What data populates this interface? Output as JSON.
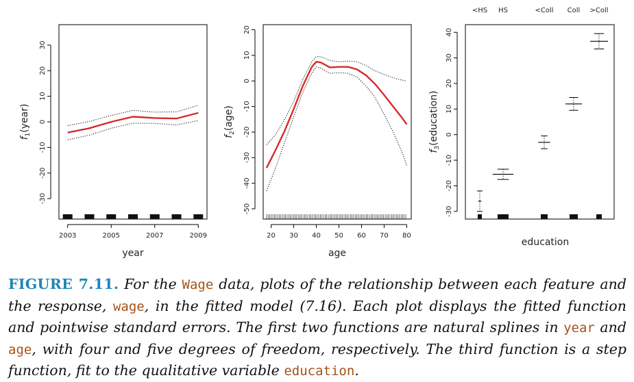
{
  "chart_data": [
    {
      "type": "line",
      "panel": "year",
      "xlabel": "year",
      "ylabel_parts": [
        "f",
        "1",
        "(year)"
      ],
      "xlim": [
        2002.6,
        2009.4
      ],
      "ylim": [
        -38,
        38
      ],
      "xticks": [
        2003,
        2005,
        2007,
        2009
      ],
      "yticks": [
        -30,
        -20,
        -10,
        0,
        10,
        20,
        30
      ],
      "fit": {
        "x": [
          2003,
          2004,
          2005,
          2006,
          2007,
          2008,
          2009
        ],
        "y": [
          -4.2,
          -2.5,
          0.0,
          2.0,
          1.5,
          1.3,
          3.5
        ]
      },
      "upper": {
        "x": [
          2003,
          2004,
          2005,
          2006,
          2007,
          2008,
          2009
        ],
        "y": [
          -1.5,
          0.2,
          2.5,
          4.5,
          3.8,
          3.9,
          6.5
        ]
      },
      "lower": {
        "x": [
          2003,
          2004,
          2005,
          2006,
          2007,
          2008,
          2009
        ],
        "y": [
          -7.0,
          -5.2,
          -2.5,
          -0.5,
          -0.6,
          -1.2,
          0.5
        ]
      },
      "rug": [
        2003,
        2004,
        2005,
        2006,
        2007,
        2008,
        2009
      ]
    },
    {
      "type": "line",
      "panel": "age",
      "xlabel": "age",
      "ylabel_parts": [
        "f",
        "2",
        "(age)"
      ],
      "xlim": [
        16.5,
        82
      ],
      "ylim": [
        -54,
        22
      ],
      "xticks": [
        20,
        30,
        40,
        50,
        60,
        70,
        80
      ],
      "yticks": [
        -50,
        -40,
        -30,
        -20,
        -10,
        0,
        10,
        20
      ],
      "fit": {
        "x": [
          18,
          22,
          26,
          30,
          34,
          38,
          40,
          42,
          46,
          50,
          54,
          58,
          62,
          66,
          70,
          74,
          78,
          80
        ],
        "y": [
          -34,
          -27,
          -19.5,
          -11,
          -2,
          5.5,
          7.5,
          7.2,
          5.3,
          5.5,
          5.5,
          4.5,
          2.2,
          -1.2,
          -5.5,
          -10,
          -14.5,
          -17
        ]
      },
      "upper": {
        "x": [
          18,
          22,
          26,
          30,
          34,
          38,
          40,
          42,
          46,
          50,
          54,
          58,
          62,
          66,
          70,
          74,
          78,
          80
        ],
        "y": [
          -25,
          -21,
          -15,
          -8,
          0.5,
          7.5,
          9.5,
          9.5,
          8,
          7.5,
          7.8,
          7.5,
          6,
          4,
          2.5,
          1.2,
          0.3,
          0
        ]
      },
      "lower": {
        "x": [
          18,
          22,
          26,
          30,
          34,
          38,
          40,
          42,
          46,
          50,
          54,
          58,
          62,
          66,
          70,
          74,
          78,
          80
        ],
        "y": [
          -43,
          -34,
          -24,
          -14,
          -4.5,
          3,
          5.5,
          5,
          3,
          3.2,
          3,
          1.5,
          -2,
          -6.5,
          -13,
          -20,
          -28,
          -33
        ]
      }
    },
    {
      "type": "step",
      "panel": "education",
      "xlabel": "education",
      "ylabel_parts": [
        "f",
        "3",
        "(education)"
      ],
      "xlim": [
        0.6,
        5.6
      ],
      "ylim": [
        -33,
        43
      ],
      "yticks": [
        -30,
        -20,
        -10,
        0,
        10,
        20,
        30,
        40
      ],
      "categories": [
        "<HS",
        "HS",
        "<Coll",
        "Coll",
        ">Coll"
      ],
      "values": [
        -26.0,
        -15.5,
        -3.0,
        12.0,
        36.5
      ],
      "upper": [
        -22.0,
        -13.5,
        -0.5,
        14.5,
        39.5
      ],
      "lower": [
        -30.0,
        -17.5,
        -5.5,
        9.5,
        33.5
      ],
      "half_widths": [
        0.05,
        0.35,
        0.2,
        0.28,
        0.3
      ]
    }
  ],
  "caption": {
    "label": "FIGURE 7.11.",
    "t1": "For the",
    "c1": "Wage",
    "t2": "data, plots of the relationship between each feature and the response,",
    "c2": "wage",
    "t3": ", in the fitted model (7.16). Each plot displays the fitted function and pointwise standard errors. The first two functions are natural splines in",
    "c3": "year",
    "t4": "and",
    "c4": "age",
    "t5": ", with four and five degrees of freedom, respectively. The third function is a step function, fit to the qualitative variable",
    "c5": "education",
    "t6": "."
  },
  "colors": {
    "fit": "#d62a2a",
    "se": "#000000",
    "frame": "#000000"
  }
}
